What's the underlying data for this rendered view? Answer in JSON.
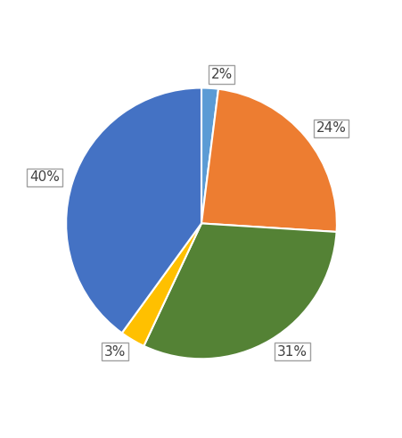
{
  "chart_data": {
    "type": "pie",
    "values": [
      2,
      24,
      31,
      3,
      40
    ],
    "value_labels": [
      "2%",
      "24%",
      "31%",
      "3%",
      "40%"
    ],
    "colors": [
      "#5b9bd5",
      "#ed7d31",
      "#548235",
      "#ffc000",
      "#4472c4"
    ],
    "data_labels": true
  }
}
